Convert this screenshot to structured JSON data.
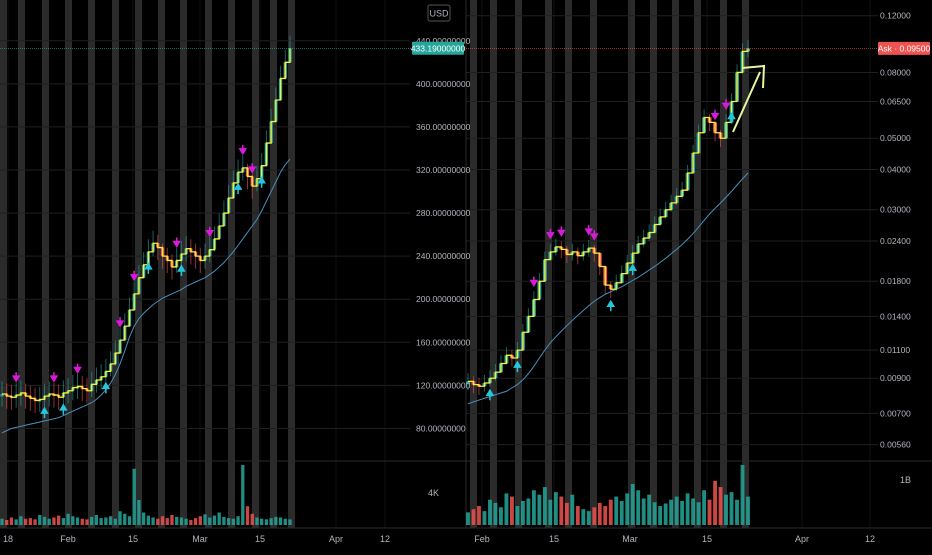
{
  "colors": {
    "background": "#000000",
    "grid": "#1f1f1f",
    "band": "#3a3a3a",
    "candle_up": "#26a69a",
    "candle_down": "#ef5350",
    "step_line": "#ffeb3b",
    "ma_line": "#4a90b8",
    "marker_down": "#d81bd8",
    "marker_up": "#26c6da",
    "axis_text": "#b2b5be",
    "price_label_left": "#26a69a",
    "price_label_right": "#ef5350",
    "arrow": "#e8f5a0"
  },
  "left_panel": {
    "currency": "USD",
    "price_label": "433.19000000",
    "volume_label": "4K",
    "x_ticks": [
      "18",
      "Feb",
      "15",
      "Mar",
      "15",
      "Apr",
      "12"
    ]
  },
  "right_panel": {
    "price_label": "Ask · 0.09500",
    "volume_label": "1B",
    "x_ticks": [
      "Feb",
      "15",
      "Mar",
      "15",
      "Apr",
      "12"
    ]
  },
  "chart_data": [
    {
      "type": "line",
      "series": [
        {
          "values": [
            112,
            110,
            109,
            111,
            113,
            110,
            108,
            106,
            107,
            110,
            112,
            111,
            109,
            113,
            115,
            118,
            119,
            117,
            115,
            121,
            125,
            128,
            133,
            140,
            150,
            162,
            175,
            190,
            205,
            220,
            232,
            244,
            252,
            248,
            240,
            236,
            230,
            236,
            242,
            247,
            244,
            240,
            236,
            240,
            246,
            256,
            268,
            280,
            294,
            308,
            318,
            322,
            314,
            305,
            312,
            324,
            345,
            365,
            385,
            405,
            420,
            433
          ]
        },
        {
          "values": [
            76,
            78,
            80,
            81,
            82,
            83,
            84,
            85,
            86,
            87,
            88,
            89,
            90,
            92,
            94,
            96,
            98,
            100,
            102,
            104,
            107,
            111,
            116,
            122,
            130,
            140,
            152,
            165,
            175,
            182,
            187,
            191,
            195,
            198,
            201,
            203,
            205,
            207,
            209,
            212,
            214,
            216,
            218,
            220,
            223,
            226,
            230,
            234,
            239,
            244,
            250,
            256,
            262,
            268,
            274,
            282,
            291,
            300,
            309,
            318,
            325,
            330
          ]
        }
      ],
      "y_ticks": [
        "440.00000000",
        "400.00000000",
        "360.00000000",
        "320.00000000",
        "280.00000000",
        "240.00000000",
        "200.00000000",
        "160.00000000",
        "120.00000000",
        "80.00000000"
      ],
      "ylim": [
        60,
        450
      ],
      "volume_values": [
        10,
        8,
        12,
        9,
        14,
        10,
        11,
        9,
        16,
        13,
        10,
        12,
        15,
        11,
        18,
        14,
        12,
        10,
        9,
        13,
        16,
        11,
        12,
        14,
        10,
        22,
        18,
        14,
        90,
        40,
        20,
        15,
        12,
        10,
        14,
        11,
        16,
        13,
        12,
        10,
        8,
        11,
        14,
        17,
        12,
        15,
        20,
        13,
        11,
        10,
        14,
        96,
        30,
        18,
        12,
        10,
        9,
        11,
        13,
        12,
        10,
        9
      ]
    },
    {
      "type": "line",
      "series": [
        {
          "values": [
            0.0088,
            0.0086,
            0.0085,
            0.0087,
            0.009,
            0.0094,
            0.01,
            0.0106,
            0.0104,
            0.011,
            0.0125,
            0.014,
            0.0158,
            0.018,
            0.021,
            0.0222,
            0.023,
            0.0226,
            0.0218,
            0.0222,
            0.0216,
            0.0222,
            0.0228,
            0.022,
            0.02,
            0.0175,
            0.017,
            0.0178,
            0.019,
            0.0205,
            0.022,
            0.0235,
            0.0245,
            0.0255,
            0.027,
            0.0285,
            0.03,
            0.0315,
            0.033,
            0.0345,
            0.039,
            0.045,
            0.052,
            0.058,
            0.056,
            0.052,
            0.05,
            0.056,
            0.065,
            0.08,
            0.093,
            0.095
          ]
        },
        {
          "values": [
            0.0075,
            0.0076,
            0.0077,
            0.0078,
            0.0079,
            0.008,
            0.0081,
            0.0082,
            0.0084,
            0.0086,
            0.0089,
            0.0093,
            0.0098,
            0.0104,
            0.011,
            0.0116,
            0.0121,
            0.0126,
            0.0131,
            0.0136,
            0.0141,
            0.0146,
            0.0151,
            0.0156,
            0.016,
            0.0164,
            0.0167,
            0.017,
            0.0173,
            0.0177,
            0.0181,
            0.0185,
            0.019,
            0.0195,
            0.02,
            0.0206,
            0.0212,
            0.0219,
            0.0226,
            0.0234,
            0.0243,
            0.0253,
            0.0265,
            0.0278,
            0.0291,
            0.0303,
            0.0315,
            0.0328,
            0.0342,
            0.0358,
            0.0374,
            0.039
          ]
        }
      ],
      "y_ticks": [
        "0.12000",
        "0.08000",
        "0.06500",
        "0.05000",
        "0.04000",
        "0.03000",
        "0.02400",
        "0.01800",
        "0.01400",
        "0.01100",
        "0.00900",
        "0.00700",
        "0.00560"
      ],
      "y_scale": "log",
      "ylim": [
        0.0052,
        0.125
      ],
      "volume_values": [
        20,
        25,
        30,
        22,
        40,
        35,
        28,
        50,
        45,
        30,
        38,
        42,
        55,
        48,
        60,
        40,
        52,
        45,
        35,
        48,
        30,
        25,
        22,
        28,
        35,
        30,
        40,
        45,
        38,
        50,
        65,
        55,
        42,
        48,
        36,
        30,
        34,
        40,
        45,
        38,
        50,
        42,
        36,
        55,
        40,
        70,
        60,
        48,
        52,
        40,
        95,
        45
      ]
    }
  ]
}
